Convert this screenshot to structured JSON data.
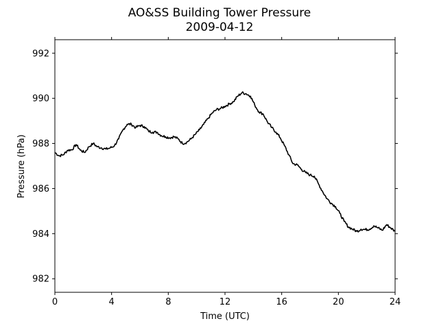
{
  "chart_data": {
    "type": "line",
    "title": "AO&SS Building Tower Pressure",
    "subtitle": "2009-04-12",
    "xlabel": "Time (UTC)",
    "ylabel": "Pressure (hPa)",
    "xlim": [
      0,
      24
    ],
    "ylim": [
      981.4,
      992.6
    ],
    "xticks": [
      0,
      4,
      8,
      12,
      16,
      20,
      24
    ],
    "yticks": [
      982,
      984,
      986,
      988,
      990,
      992
    ],
    "grid": false,
    "line_color": "#000000",
    "series": [
      {
        "x": [
          0,
          0.3,
          0.6,
          0.9,
          1.2,
          1.5,
          1.8,
          2.1,
          2.4,
          2.7,
          3.0,
          3.3,
          3.6,
          3.9,
          4.2,
          4.5,
          4.8,
          5.1,
          5.4,
          5.7,
          6.0,
          6.3,
          6.6,
          6.9,
          7.2,
          7.5,
          7.8,
          8.1,
          8.4,
          8.7,
          9.0,
          9.3,
          9.6,
          9.9,
          10.2,
          10.5,
          10.8,
          11.1,
          11.4,
          11.7,
          12.0,
          12.3,
          12.6,
          12.9,
          13.2,
          13.5,
          13.8,
          14.1,
          14.4,
          14.7,
          15.0,
          15.3,
          15.6,
          15.9,
          16.2,
          16.5,
          16.8,
          17.1,
          17.4,
          17.7,
          18.0,
          18.3,
          18.6,
          18.9,
          19.2,
          19.5,
          19.8,
          20.1,
          20.4,
          20.7,
          21.0,
          21.3,
          21.6,
          21.9,
          22.2,
          22.5,
          22.8,
          23.1,
          23.4,
          23.7,
          24.0
        ],
        "y": [
          987.6,
          987.45,
          987.5,
          987.7,
          987.72,
          987.95,
          987.7,
          987.6,
          987.85,
          988.0,
          987.85,
          987.8,
          987.75,
          987.8,
          987.9,
          988.2,
          988.6,
          988.85,
          988.85,
          988.7,
          988.8,
          988.75,
          988.55,
          988.5,
          988.5,
          988.35,
          988.3,
          988.25,
          988.3,
          988.2,
          988.0,
          988.05,
          988.2,
          988.4,
          988.6,
          988.85,
          989.1,
          989.35,
          989.5,
          989.55,
          989.65,
          989.75,
          989.85,
          990.1,
          990.25,
          990.2,
          990.1,
          989.7,
          989.4,
          989.3,
          988.95,
          988.7,
          988.5,
          988.25,
          987.9,
          987.5,
          987.1,
          987.05,
          986.85,
          986.7,
          986.6,
          986.55,
          986.2,
          985.85,
          985.55,
          985.35,
          985.2,
          984.9,
          984.55,
          984.3,
          984.2,
          984.1,
          984.2,
          984.18,
          984.2,
          984.35,
          984.25,
          984.15,
          984.4,
          984.25,
          984.1
        ]
      }
    ]
  }
}
